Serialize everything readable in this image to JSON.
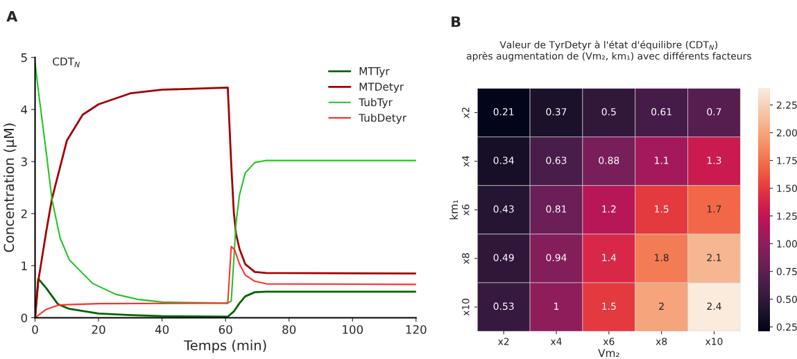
{
  "chart_data": [
    {
      "type": "line",
      "xlabel": "Temps (min)",
      "ylabel": "Concentration (µM)",
      "annotations": [
        "A",
        "CDT$_{N}$"
      ],
      "xlim": [
        0,
        120
      ],
      "ylim": [
        0,
        5
      ],
      "xticks": [
        0,
        20,
        40,
        60,
        80,
        100,
        120
      ],
      "yticks": [
        0,
        1,
        2,
        3,
        4,
        5
      ],
      "grid": false,
      "legend": "top right",
      "series": [
        {
          "name": "MTTyr",
          "color": "#006400",
          "x": [
            0,
            1,
            3.5,
            7.2,
            10.8,
            20,
            30,
            40,
            60.7,
            62.6,
            64.4,
            66.2,
            69.2,
            72.8,
            120
          ],
          "values": [
            0,
            0.75,
            0.57,
            0.26,
            0.17,
            0.08,
            0.05,
            0.03,
            0.02,
            0.12,
            0.28,
            0.41,
            0.49,
            0.5,
            0.5
          ]
        },
        {
          "name": "MTDetyr",
          "color": "#a00000",
          "x": [
            0,
            1,
            3.5,
            5.3,
            10,
            15,
            20,
            30,
            40,
            60.7,
            61.8,
            62.6,
            63.3,
            64.4,
            66.2,
            69.2,
            72.8,
            120
          ],
          "values": [
            0,
            0.7,
            1.65,
            2.28,
            3.4,
            3.9,
            4.1,
            4.31,
            4.38,
            4.42,
            2.94,
            2.03,
            1.61,
            1.32,
            1.03,
            0.88,
            0.86,
            0.85
          ]
        },
        {
          "name": "TubTyr",
          "color": "#22c322",
          "x": [
            0,
            1.3,
            3.5,
            5.3,
            7.9,
            10.8,
            18.1,
            25.4,
            32.7,
            40,
            60.7,
            61.8,
            62.6,
            63.3,
            64.4,
            66.2,
            69.2,
            72.8,
            120
          ],
          "values": [
            4.9,
            4.23,
            3.19,
            2.28,
            1.53,
            1.11,
            0.66,
            0.45,
            0.35,
            0.3,
            0.28,
            0.32,
            1.11,
            1.82,
            2.36,
            2.78,
            2.98,
            3.02,
            3.02
          ]
        },
        {
          "name": "TubDetyr",
          "color": "#ff3030",
          "x": [
            0,
            3.5,
            7.2,
            10,
            20,
            60.7,
            61.8,
            62.9,
            64.4,
            66.2,
            69.2,
            72.8,
            120
          ],
          "values": [
            0,
            0.16,
            0.24,
            0.25,
            0.27,
            0.28,
            1.37,
            1.3,
            1.03,
            0.82,
            0.7,
            0.65,
            0.64
          ]
        }
      ]
    },
    {
      "type": "heatmap",
      "title": "Valeur de TyrDetyr à l'état d'équilibre (CDT$_{N}$)\naprès augmentation de (Vm₂, km₁) avec différents facteurs",
      "xlabel": "Vm₂",
      "ylabel": "km₁",
      "annotations": [
        "B"
      ],
      "categories": [
        "x2",
        "x4",
        "x6",
        "x8",
        "x10"
      ],
      "y_categories": [
        "x2",
        "x4",
        "x6",
        "x8",
        "x10"
      ],
      "cells": [
        [
          0.21,
          0.37,
          0.5,
          0.61,
          0.7
        ],
        [
          0.34,
          0.63,
          0.88,
          1.1,
          1.3
        ],
        [
          0.43,
          0.81,
          1.2,
          1.5,
          1.7
        ],
        [
          0.49,
          0.94,
          1.4,
          1.8,
          2.1
        ],
        [
          0.53,
          1,
          1.5,
          2,
          2.4
        ]
      ],
      "data_labels": true,
      "clim": [
        0.21,
        2.4
      ],
      "cticks": [
        {
          "value": 0.25,
          "label": "0.25"
        },
        {
          "value": 0.5,
          "label": "0.50"
        },
        {
          "value": 0.75,
          "label": "0.75"
        },
        {
          "value": 1,
          "label": "1.00"
        },
        {
          "value": 1.25,
          "label": "1.25"
        },
        {
          "value": 1.5,
          "label": "1.50"
        },
        {
          "value": 1.75,
          "label": "1.75"
        },
        {
          "value": 2,
          "label": "2.00"
        },
        {
          "value": 2.25,
          "label": "2.25"
        }
      ]
    }
  ]
}
